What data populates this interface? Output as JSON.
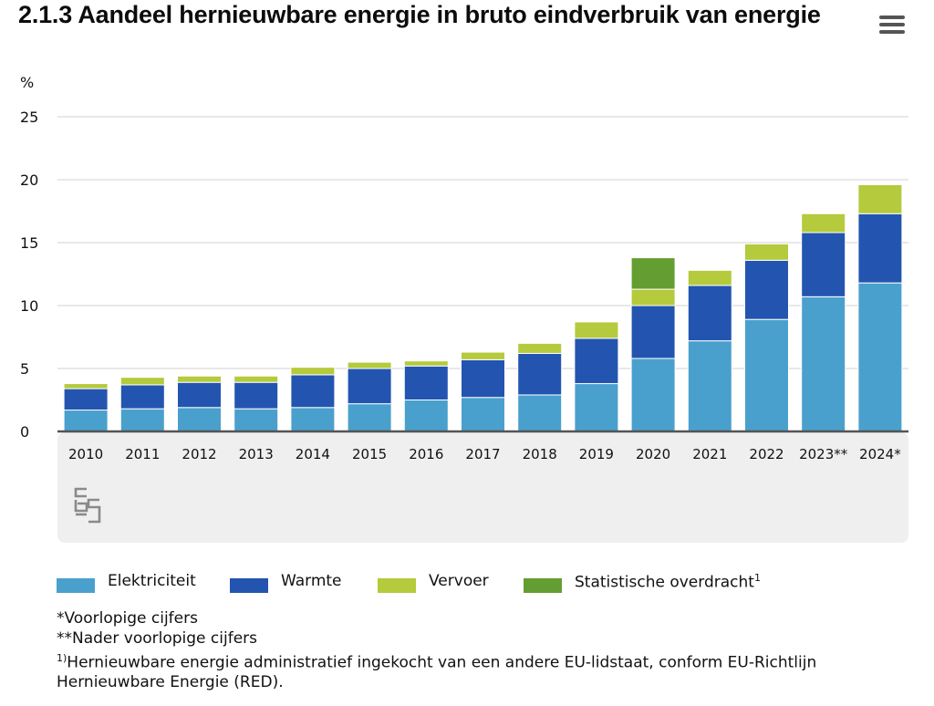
{
  "menu": {
    "icon": "hamburger-menu-icon"
  },
  "logo": {
    "icon": "cbs-logo-icon"
  },
  "chart_data": {
    "type": "bar",
    "stacked": true,
    "title": "2.1.3 Aandeel hernieuwbare energie in bruto eindverbruik van energie",
    "ylabel": "%",
    "xlabel": "",
    "ylim": [
      0,
      25
    ],
    "yticks": [
      0,
      5,
      10,
      15,
      20,
      25
    ],
    "grid": true,
    "legend_position": "bottom",
    "categories": [
      "2010",
      "2011",
      "2012",
      "2013",
      "2014",
      "2015",
      "2016",
      "2017",
      "2018",
      "2019",
      "2020",
      "2021",
      "2022",
      "2023**",
      "2024*"
    ],
    "series": [
      {
        "name": "Elektriciteit",
        "color": "#4aa0cc",
        "values": [
          1.7,
          1.8,
          1.9,
          1.8,
          1.9,
          2.2,
          2.5,
          2.7,
          2.9,
          3.8,
          5.8,
          7.2,
          8.9,
          10.7,
          11.8
        ]
      },
      {
        "name": "Warmte",
        "color": "#2355b0",
        "values": [
          1.7,
          1.9,
          2.0,
          2.1,
          2.6,
          2.8,
          2.7,
          3.0,
          3.3,
          3.6,
          4.2,
          4.4,
          4.7,
          5.1,
          5.5
        ]
      },
      {
        "name": "Vervoer",
        "color": "#b5ca3c",
        "values": [
          0.4,
          0.6,
          0.5,
          0.5,
          0.6,
          0.5,
          0.4,
          0.6,
          0.8,
          1.3,
          1.3,
          1.2,
          1.3,
          1.5,
          2.3
        ]
      },
      {
        "name": "Statistische overdracht",
        "sup": "1",
        "color": "#649e32",
        "values": [
          0,
          0,
          0,
          0,
          0,
          0,
          0,
          0,
          0,
          0,
          2.5,
          0,
          0,
          0,
          0
        ]
      }
    ]
  },
  "notes": [
    {
      "text": "*Voorlopige cijfers"
    },
    {
      "text": "**Nader voorlopige cijfers"
    },
    {
      "sup": "1)",
      "text": "Hernieuwbare energie administratief ingekocht van een andere EU-lidstaat, conform EU-Richtlijn Hernieuwbare Energie (RED)."
    }
  ]
}
